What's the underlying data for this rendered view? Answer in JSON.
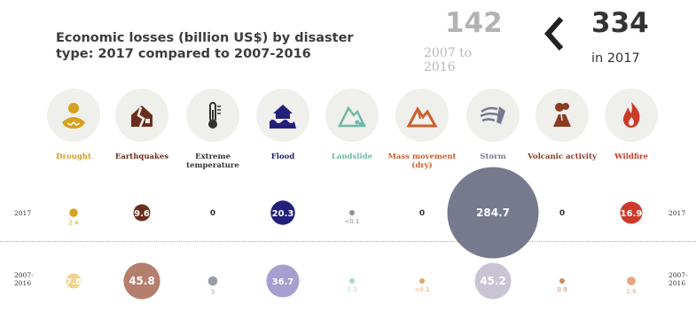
{
  "title": "Economic losses (billion US$) by disaster type: 2017 compared to 2007-2016",
  "summary": {
    "average_value": "142",
    "average_label": "2007 to 2016",
    "current_value": "334",
    "current_label": "in 2017"
  },
  "chart_data": {
    "type": "bubble",
    "title": "Economic losses (billion US$) by disaster type: 2017 compared to 2007-2016",
    "rows": [
      "2017",
      "2007-2016"
    ],
    "categories": [
      "Drought",
      "Earthquakes",
      "Extreme temperature",
      "Flood",
      "Landslide",
      "Mass movement (dry)",
      "Storm",
      "Volcanic activity",
      "Wildfire"
    ],
    "series": [
      {
        "name": "2017",
        "values": [
          2.4,
          9.6,
          0,
          20.3,
          0.1,
          0,
          284.7,
          0,
          16.9
        ],
        "labels": [
          "2.4",
          "9.6",
          "0",
          "20.3",
          "<0.1",
          "0",
          "284.7",
          "0",
          "16.9"
        ]
      },
      {
        "name": "2007-2016",
        "values": [
          7.8,
          45.8,
          3,
          36.7,
          0.3,
          0.1,
          45.2,
          0.9,
          2.6
        ],
        "labels": [
          "7.8",
          "45.8",
          "3",
          "36.7",
          "0.3",
          "<0.1",
          "45.2",
          "0.9",
          "2.6"
        ]
      }
    ],
    "colors": {
      "2017": [
        "#d6a11f",
        "#6b2e1e",
        "#555555",
        "#22207a",
        "#8a8f95",
        "#c7612f",
        "#777a8e",
        "#c7612f",
        "#cc3a2a"
      ],
      "2007-2016": [
        "#efd38e",
        "#b47f6c",
        "#9b9ea4",
        "#a69fcf",
        "#a7dacc",
        "#e7a567",
        "#c8c4d4",
        "#c98a6b",
        "#e8a581"
      ]
    },
    "label_colors": [
      "#d69b1f",
      "#6b2e1e",
      "#333333",
      "#22207a",
      "#6fb9a6",
      "#c7612f",
      "#777a8e",
      "#8c3c22",
      "#cc3a2a"
    ]
  },
  "icons": [
    "drought-icon",
    "earthquake-icon",
    "thermometer-icon",
    "flood-icon",
    "landslide-icon",
    "mass-movement-icon",
    "storm-icon",
    "volcano-icon",
    "wildfire-icon"
  ]
}
